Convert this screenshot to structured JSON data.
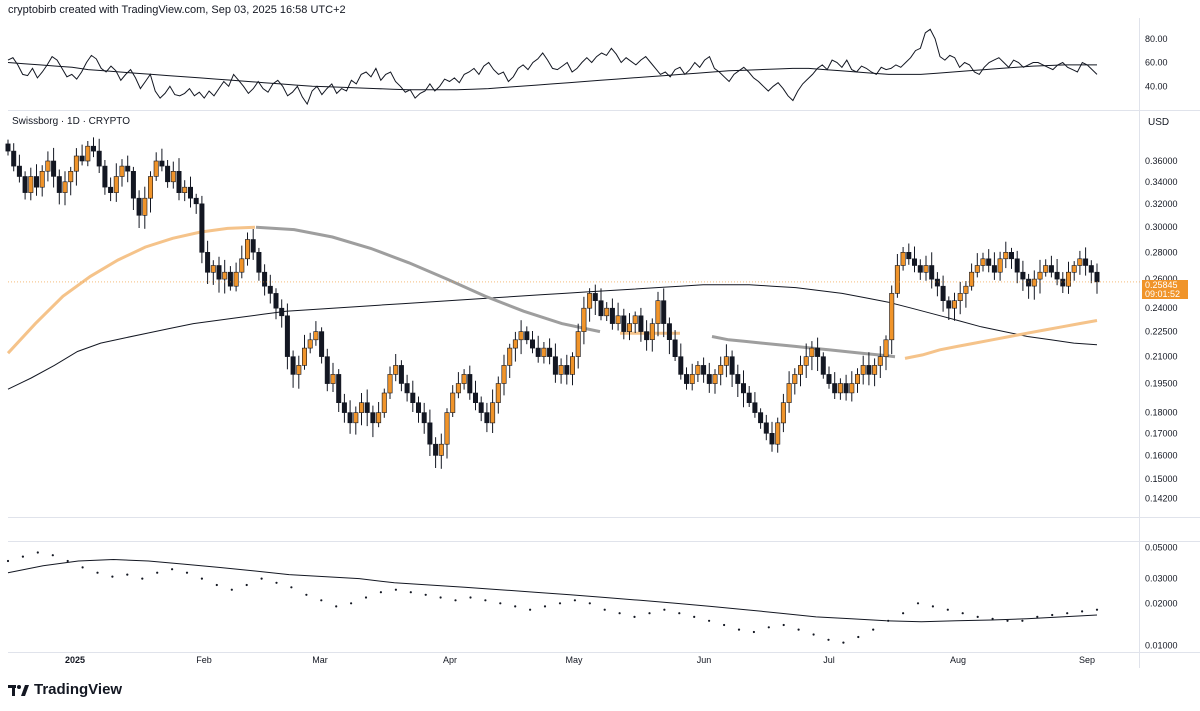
{
  "header": {
    "text": "cryptobirb created with TradingView.com, Sep 03, 2025 16:58 UTC+2"
  },
  "symbol_label": "Swissborg · 1D · CRYPTO",
  "currency": "USD",
  "price_tag": {
    "price": "0.25845",
    "countdown": "09:01:52"
  },
  "brand": {
    "name": "TradingView"
  },
  "colors": {
    "bull": "#f0942a",
    "bear": "#131722",
    "ema_fast": "#f5c38a",
    "ema_mid": "#9e9e9e",
    "ema_slow": "#131722",
    "grid": "#e0e3eb"
  },
  "chart_data": [
    {
      "type": "line",
      "pane": "oscillator",
      "yticks": [
        40.0,
        60.0,
        80.0
      ],
      "ytick_labels": [
        "40.00",
        "60.00",
        "80.00"
      ],
      "series": [
        {
          "values": [
            62,
            64,
            58,
            50,
            49,
            55,
            47,
            52,
            58,
            65,
            62,
            55,
            48,
            50,
            46,
            52,
            60,
            66,
            63,
            55,
            52,
            57,
            53,
            45,
            50,
            54,
            47,
            38,
            44,
            50,
            36,
            30,
            34,
            40,
            33,
            32,
            34,
            38,
            32,
            35,
            30,
            36,
            32,
            38,
            44,
            40,
            50,
            45,
            40,
            34,
            38,
            44,
            38,
            35,
            42,
            45,
            40,
            32,
            35,
            40,
            31,
            25,
            36,
            40,
            33,
            38,
            42,
            34,
            38,
            36,
            45,
            42,
            50,
            52,
            48,
            55,
            45,
            50,
            52,
            44,
            40,
            35,
            37,
            30,
            34,
            36,
            42,
            36,
            40,
            46,
            44,
            47,
            43,
            50,
            52,
            55,
            50,
            57,
            60,
            54,
            50,
            52,
            44,
            48,
            55,
            58,
            54,
            60,
            63,
            68,
            62,
            55,
            54,
            57,
            60,
            52,
            55,
            60,
            64,
            60,
            65,
            68,
            66,
            72,
            67,
            60,
            64,
            61,
            58,
            62,
            65,
            60,
            55,
            50,
            52,
            48,
            54,
            56,
            50,
            54,
            60,
            56,
            62,
            65,
            55,
            52,
            48,
            44,
            50,
            53,
            56,
            52,
            47,
            44,
            40,
            36,
            40,
            43,
            38,
            32,
            28,
            36,
            42,
            46,
            50,
            55,
            58,
            54,
            62,
            60,
            56,
            62,
            54,
            52,
            57,
            55,
            52,
            50,
            56,
            54,
            55,
            58,
            56,
            60,
            64,
            70,
            72,
            85,
            88,
            80,
            65,
            62,
            66,
            64,
            56,
            60,
            58,
            52,
            50,
            56,
            60,
            62,
            64,
            60,
            56,
            62,
            60,
            56,
            58,
            60,
            60,
            58,
            56,
            54,
            58,
            60,
            56,
            54,
            52,
            60,
            58,
            54,
            50
          ]
        },
        {
          "values": [
            60,
            59,
            58,
            57,
            56,
            54,
            53,
            52,
            51,
            50,
            49,
            48,
            47,
            46,
            45,
            44,
            43,
            42,
            41,
            40,
            39.5,
            39,
            38.5,
            38,
            37.5,
            37,
            37,
            37,
            37,
            37.5,
            38,
            39,
            40,
            41,
            42,
            43,
            44,
            45,
            46,
            47,
            48,
            49,
            50,
            51,
            52,
            53,
            53.5,
            54,
            54.5,
            55,
            55,
            54,
            53,
            52,
            51,
            50,
            50,
            50,
            51,
            52,
            53,
            54,
            55,
            56,
            57,
            57.5,
            58,
            58,
            58
          ]
        }
      ]
    },
    {
      "type": "candlestick",
      "pane": "price",
      "x_labels": [
        "2025",
        "Feb",
        "Mar",
        "Apr",
        "May",
        "Jun",
        "Jul",
        "Aug",
        "Sep"
      ],
      "yticks": [
        0.142,
        0.15,
        0.16,
        0.17,
        0.18,
        0.195,
        0.21,
        0.225,
        0.24,
        0.26,
        0.28,
        0.3,
        0.32,
        0.34,
        0.36
      ],
      "ytick_labels": [
        "0.14200",
        "0.15000",
        "0.16000",
        "0.17000",
        "0.18000",
        "0.19500",
        "0.21000",
        "0.22500",
        "0.24000",
        "0.26000",
        "0.28000",
        "0.30000",
        "0.32000",
        "0.34000",
        "0.36000"
      ],
      "close": [
        0.37,
        0.355,
        0.345,
        0.33,
        0.345,
        0.335,
        0.35,
        0.36,
        0.345,
        0.33,
        0.34,
        0.35,
        0.365,
        0.36,
        0.375,
        0.37,
        0.355,
        0.335,
        0.33,
        0.345,
        0.355,
        0.35,
        0.325,
        0.31,
        0.325,
        0.345,
        0.36,
        0.355,
        0.34,
        0.35,
        0.33,
        0.335,
        0.325,
        0.32,
        0.28,
        0.265,
        0.27,
        0.26,
        0.265,
        0.255,
        0.265,
        0.275,
        0.29,
        0.28,
        0.265,
        0.255,
        0.25,
        0.24,
        0.235,
        0.21,
        0.2,
        0.205,
        0.215,
        0.22,
        0.225,
        0.21,
        0.195,
        0.2,
        0.185,
        0.18,
        0.175,
        0.18,
        0.185,
        0.18,
        0.175,
        0.18,
        0.19,
        0.2,
        0.205,
        0.195,
        0.19,
        0.185,
        0.18,
        0.175,
        0.165,
        0.16,
        0.165,
        0.18,
        0.19,
        0.195,
        0.2,
        0.19,
        0.185,
        0.18,
        0.175,
        0.185,
        0.195,
        0.205,
        0.215,
        0.22,
        0.225,
        0.22,
        0.215,
        0.21,
        0.215,
        0.21,
        0.2,
        0.205,
        0.2,
        0.21,
        0.225,
        0.24,
        0.25,
        0.245,
        0.235,
        0.24,
        0.23,
        0.235,
        0.225,
        0.23,
        0.235,
        0.225,
        0.22,
        0.23,
        0.245,
        0.23,
        0.22,
        0.21,
        0.2,
        0.195,
        0.2,
        0.205,
        0.2,
        0.195,
        0.2,
        0.205,
        0.21,
        0.2,
        0.195,
        0.19,
        0.185,
        0.18,
        0.175,
        0.17,
        0.165,
        0.175,
        0.185,
        0.195,
        0.2,
        0.205,
        0.21,
        0.215,
        0.21,
        0.2,
        0.195,
        0.19,
        0.195,
        0.19,
        0.195,
        0.2,
        0.205,
        0.2,
        0.205,
        0.21,
        0.22,
        0.25,
        0.27,
        0.28,
        0.275,
        0.27,
        0.265,
        0.27,
        0.26,
        0.255,
        0.245,
        0.24,
        0.245,
        0.25,
        0.255,
        0.265,
        0.27,
        0.275,
        0.27,
        0.265,
        0.275,
        0.28,
        0.275,
        0.265,
        0.26,
        0.255,
        0.26,
        0.265,
        0.27,
        0.265,
        0.26,
        0.255,
        0.265,
        0.27,
        0.275,
        0.27,
        0.265,
        0.258
      ],
      "ema_slow": [
        0.192,
        0.198,
        0.205,
        0.213,
        0.218,
        0.221,
        0.224,
        0.227,
        0.23,
        0.232,
        0.234,
        0.236,
        0.238,
        0.239,
        0.24,
        0.241,
        0.242,
        0.243,
        0.244,
        0.245,
        0.246,
        0.247,
        0.248,
        0.249,
        0.25,
        0.251,
        0.252,
        0.253,
        0.254,
        0.255,
        0.256,
        0.256,
        0.256,
        0.255,
        0.254,
        0.252,
        0.25,
        0.247,
        0.244,
        0.24,
        0.236,
        0.232,
        0.228,
        0.225,
        0.222,
        0.22,
        0.218,
        0.217
      ],
      "ema_mid": [
        0.3,
        0.298,
        0.292,
        0.283,
        0.272,
        0.26,
        0.248,
        0.238,
        0.23,
        0.225,
        0.222,
        0.22,
        0.219,
        0.218,
        0.217,
        0.216,
        0.215,
        0.214,
        0.213,
        0.212,
        0.211,
        0.21
      ],
      "ema_fast": [
        0.212,
        0.23,
        0.248,
        0.262,
        0.274,
        0.284,
        0.291,
        0.296,
        0.299,
        0.3,
        0.224,
        0.224,
        0.224,
        0.224,
        0.209,
        0.211,
        0.214,
        0.216,
        0.218,
        0.22,
        0.222,
        0.224,
        0.226,
        0.228,
        0.23,
        0.232
      ]
    },
    {
      "type": "line",
      "pane": "volatility",
      "yticks": [
        0.01,
        0.02,
        0.03,
        0.05
      ],
      "ytick_labels": [
        "0.01000",
        "0.02000",
        "0.03000",
        "0.05000"
      ],
      "series": [
        {
          "values": [
            0.04,
            0.043,
            0.046,
            0.044,
            0.04,
            0.036,
            0.033,
            0.031,
            0.032,
            0.03,
            0.033,
            0.035,
            0.033,
            0.03,
            0.027,
            0.025,
            0.027,
            0.03,
            0.028,
            0.026,
            0.023,
            0.021,
            0.019,
            0.02,
            0.022,
            0.024,
            0.025,
            0.024,
            0.023,
            0.022,
            0.021,
            0.022,
            0.021,
            0.02,
            0.019,
            0.018,
            0.019,
            0.02,
            0.021,
            0.02,
            0.018,
            0.017,
            0.016,
            0.017,
            0.018,
            0.017,
            0.016,
            0.015,
            0.014,
            0.013,
            0.0125,
            0.0135,
            0.014,
            0.013,
            0.012,
            0.011,
            0.0105,
            0.0115,
            0.013,
            0.015,
            0.017,
            0.02,
            0.019,
            0.018,
            0.017,
            0.016,
            0.0155,
            0.015,
            0.015,
            0.016,
            0.0165,
            0.017,
            0.0175,
            0.018
          ]
        },
        {
          "values": [
            0.033,
            0.037,
            0.04,
            0.041,
            0.04,
            0.038,
            0.036,
            0.034,
            0.032,
            0.031,
            0.03,
            0.028,
            0.027,
            0.026,
            0.025,
            0.024,
            0.023,
            0.022,
            0.021,
            0.02,
            0.019,
            0.018,
            0.017,
            0.016,
            0.0155,
            0.015,
            0.0148,
            0.015,
            0.0152,
            0.0155,
            0.016,
            0.0165
          ]
        }
      ]
    }
  ]
}
